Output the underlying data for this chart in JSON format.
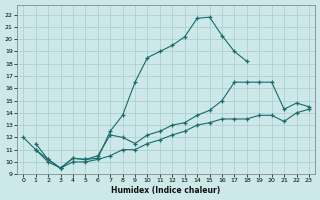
{
  "xlabel": "Humidex (Indice chaleur)",
  "xlim": [
    -0.5,
    23.5
  ],
  "ylim": [
    9,
    22.8
  ],
  "xticks": [
    0,
    1,
    2,
    3,
    4,
    5,
    6,
    7,
    8,
    9,
    10,
    11,
    12,
    13,
    14,
    15,
    16,
    17,
    18,
    19,
    20,
    21,
    22,
    23
  ],
  "yticks": [
    9,
    10,
    11,
    12,
    13,
    14,
    15,
    16,
    17,
    18,
    19,
    20,
    21,
    22
  ],
  "bg_color": "#cce8e8",
  "grid_color": "#aacccc",
  "line_color": "#1a6b6b",
  "line1_x": [
    0,
    1,
    2,
    3,
    4,
    5,
    6,
    7,
    8,
    9,
    10,
    11,
    12,
    13,
    14,
    15,
    16,
    17,
    18
  ],
  "line1_y": [
    12.0,
    11.0,
    10.2,
    9.5,
    10.3,
    10.2,
    10.3,
    12.5,
    13.8,
    16.5,
    18.5,
    19.0,
    19.5,
    20.2,
    21.7,
    21.8,
    20.3,
    19.0,
    18.2
  ],
  "line2_x": [
    1,
    2,
    3,
    4,
    5,
    6,
    7,
    8,
    9,
    10,
    11,
    12,
    13,
    14,
    15,
    16,
    17,
    18,
    19,
    20,
    21,
    22,
    23
  ],
  "line2_y": [
    11.5,
    10.2,
    9.5,
    10.3,
    10.2,
    10.5,
    12.2,
    12.0,
    11.5,
    12.2,
    12.5,
    13.0,
    13.2,
    13.8,
    14.2,
    15.0,
    16.5,
    16.5,
    16.5,
    16.5,
    14.3,
    14.8,
    14.5
  ],
  "line3_x": [
    1,
    2,
    3,
    4,
    5,
    6,
    7,
    8,
    9,
    10,
    11,
    12,
    13,
    14,
    15,
    16,
    17,
    18,
    19,
    20,
    21,
    22,
    23
  ],
  "line3_y": [
    11.0,
    10.0,
    9.5,
    10.0,
    10.0,
    10.2,
    10.5,
    11.0,
    11.0,
    11.5,
    11.8,
    12.2,
    12.5,
    13.0,
    13.2,
    13.5,
    13.5,
    13.5,
    13.8,
    13.8,
    13.3,
    14.0,
    14.3
  ]
}
